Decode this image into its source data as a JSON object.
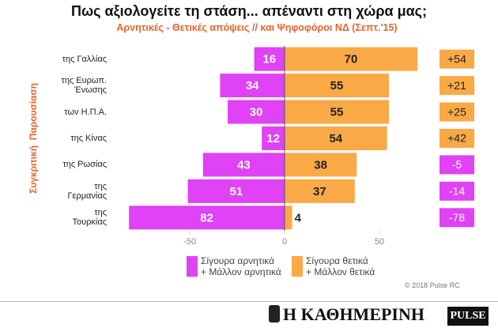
{
  "chart_data": {
    "type": "diverging-bar",
    "title": "Πως αξιολογείτε τη στάση... απέναντι στη χώρα μας;",
    "subtitle": "Αρνητικές - Θετικές απόψεις // και Ψηφοφόροι ΝΔ (Σεπτ.'15)",
    "y_label": "Συγκριτική  Παρουσίαση",
    "categories": [
      "της Γαλλίας",
      "της Ευρωπ.\nΈνωσης",
      "των Η.Π.Α.",
      "της Κίνας",
      "της Ρωσίας",
      "της\nΓερμανίας",
      "της\nΤουρκίας"
    ],
    "series": [
      {
        "name": "Σίγουρα αρνητικά\n+ Μάλλον αρνητικά",
        "color": "#e042f5",
        "values": [
          -16,
          -34,
          -30,
          -12,
          -43,
          -51,
          -82
        ],
        "value_labels": [
          "16",
          "34",
          "30",
          "12",
          "43",
          "51",
          "82"
        ]
      },
      {
        "name": "Σίγουρα θετικά\n+ Μάλλον θετικά",
        "color": "#f9a946",
        "values": [
          70,
          55,
          55,
          54,
          38,
          37,
          4
        ]
      }
    ],
    "net": {
      "values": [
        54,
        21,
        25,
        42,
        -5,
        -14,
        -78
      ],
      "value_labels": [
        "+54",
        "+21",
        "+25",
        "+42",
        "-5",
        "-14",
        "-78"
      ]
    },
    "xlim": [
      -90,
      75
    ],
    "xticks": [
      -50,
      0,
      50
    ],
    "grid": false,
    "source": "© 2018 Pulse RC",
    "brand": "Η ΚΑΘΗΜΕΡΙΝΗ",
    "logo": "PULSE"
  }
}
